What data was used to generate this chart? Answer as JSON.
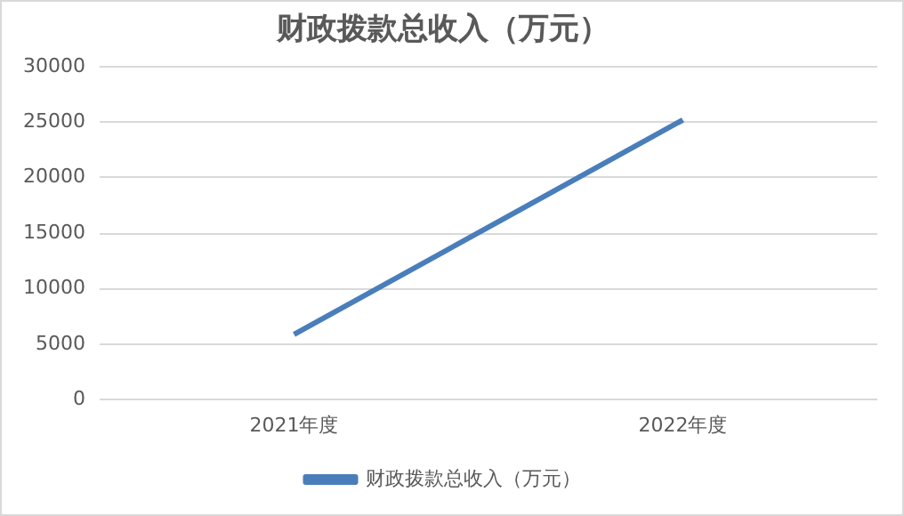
{
  "chart_data": {
    "type": "line",
    "title": "财政拨款总收入（万元）",
    "categories": [
      "2021年度",
      "2022年度"
    ],
    "series": [
      {
        "name": "财政拨款总收入（万元）",
        "color": "#4a7ebb",
        "values": [
          5900,
          25200
        ]
      }
    ],
    "ylim": [
      0,
      30000
    ],
    "yticks": [
      0,
      5000,
      10000,
      15000,
      20000,
      25000,
      30000
    ],
    "grid": "y",
    "legend": "bottom",
    "marker": "none"
  }
}
